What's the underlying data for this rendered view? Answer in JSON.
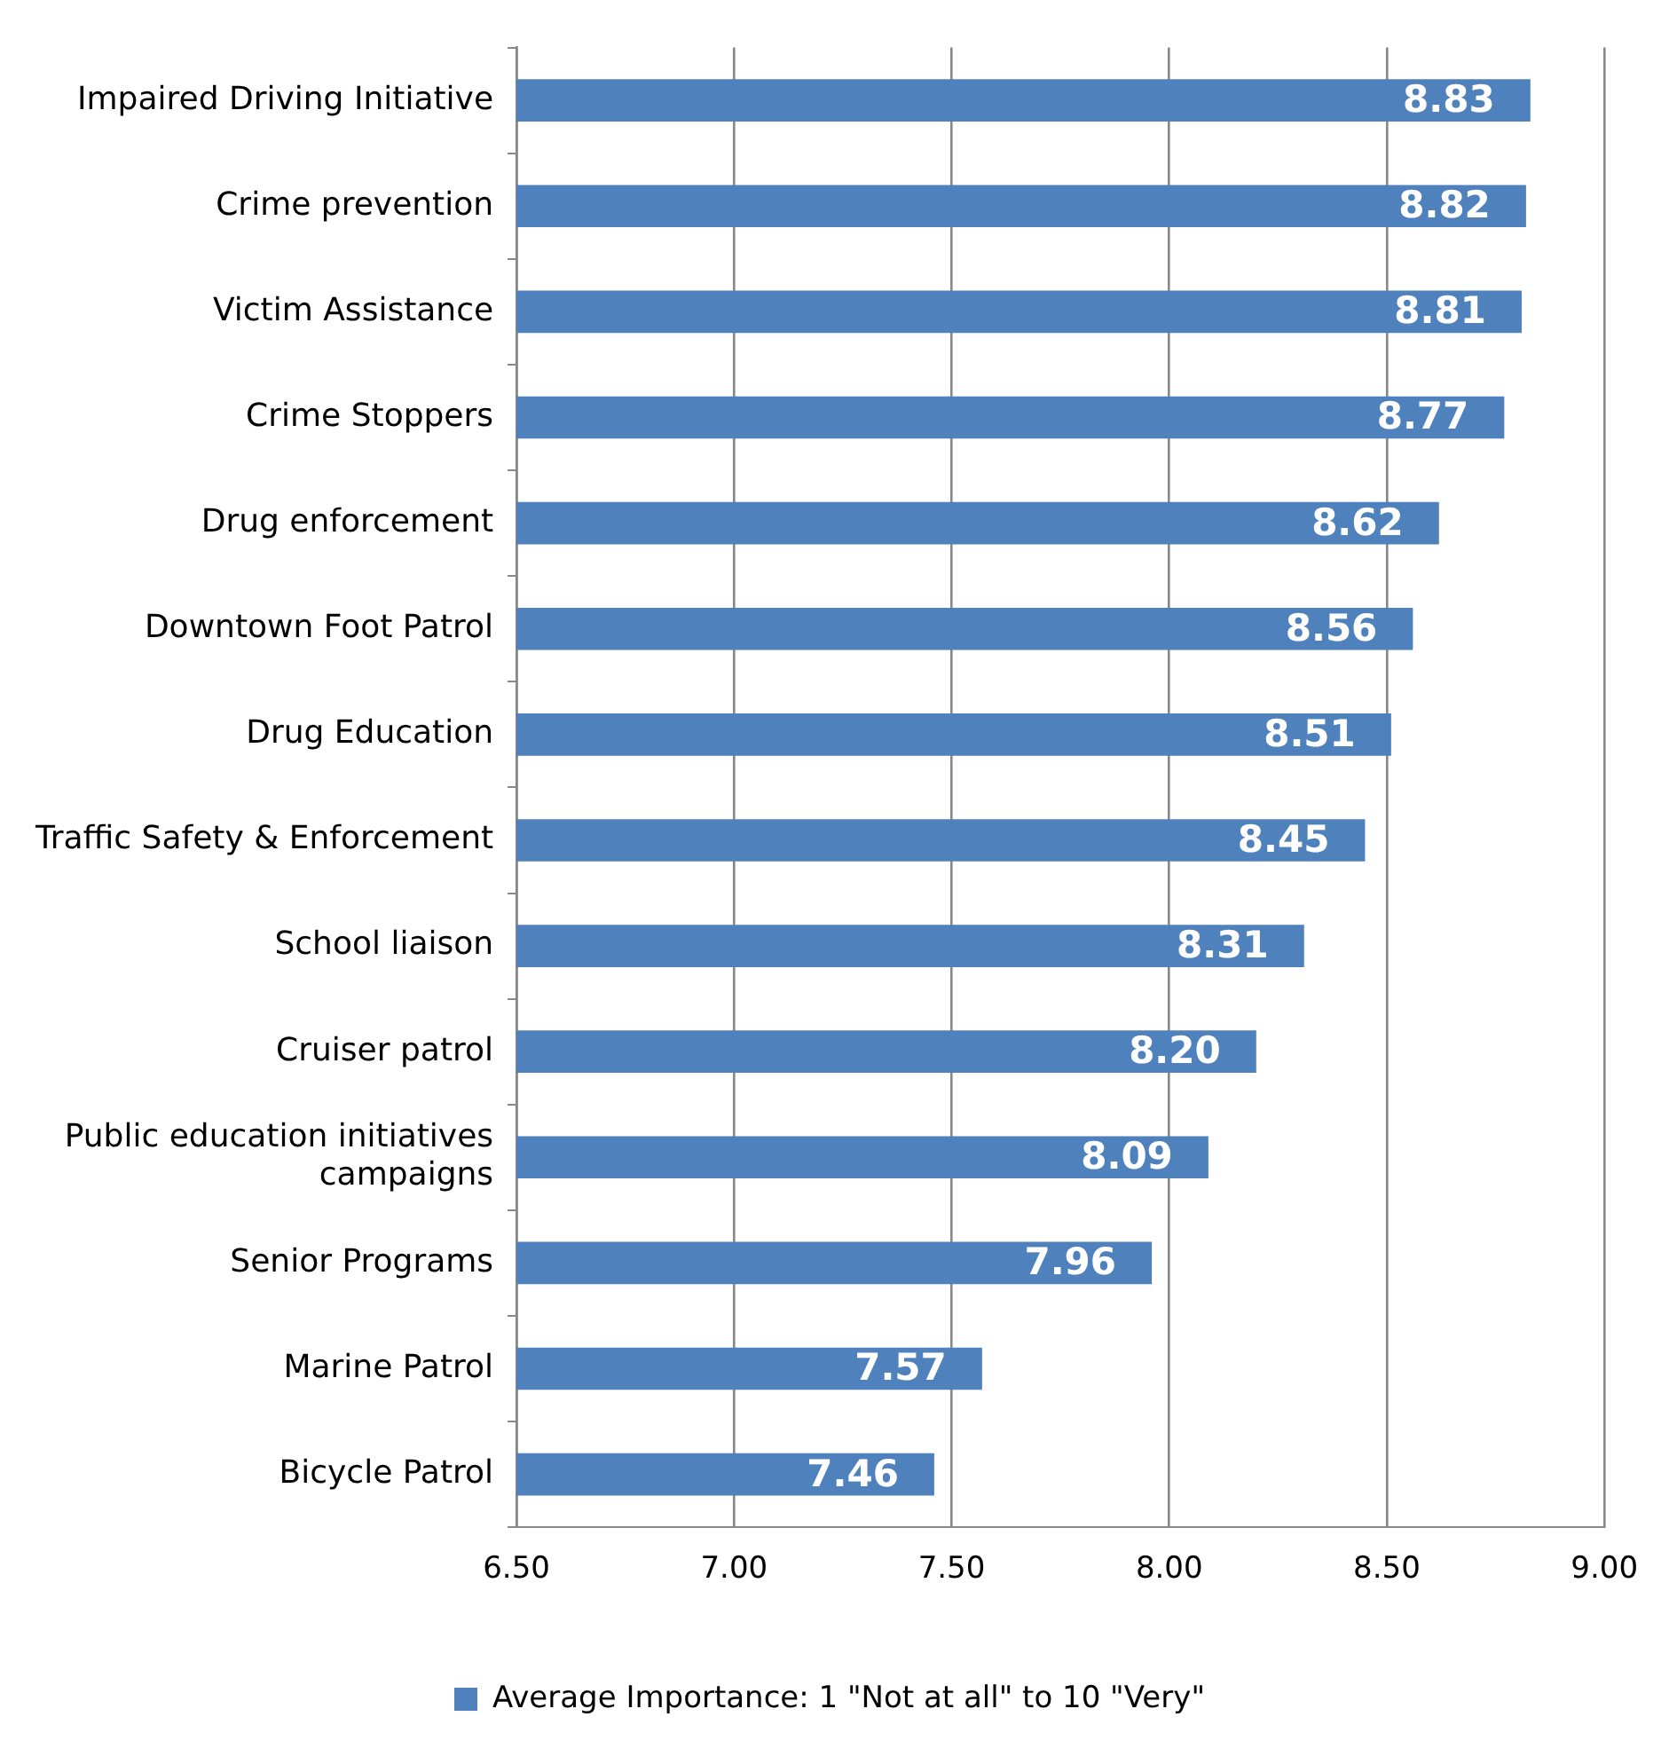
{
  "chart_data": {
    "type": "bar",
    "orientation": "horizontal",
    "categories": [
      "Impaired Driving Initiative",
      "Crime prevention",
      "Victim Assistance",
      "Crime Stoppers",
      "Drug enforcement",
      "Downtown Foot Patrol",
      "Drug Education",
      "Traffic Safety & Enforcement",
      "School liaison",
      "Cruiser patrol",
      "Public education initiatives campaigns",
      "Senior Programs",
      "Marine Patrol",
      "Bicycle Patrol"
    ],
    "series": [
      {
        "name": "Average Importance: 1 \"Not at all\" to 10 \"Very\"",
        "color": "#4f81bd",
        "values": [
          8.83,
          8.82,
          8.81,
          8.77,
          8.62,
          8.56,
          8.51,
          8.45,
          8.31,
          8.2,
          8.09,
          7.96,
          7.57,
          7.46
        ]
      }
    ],
    "xlim": [
      6.5,
      9
    ],
    "xticks": [
      {
        "value": 6.5,
        "label": "6.50"
      },
      {
        "value": 7,
        "label": "7.00"
      },
      {
        "value": 7.5,
        "label": "7.50"
      },
      {
        "value": 8,
        "label": "8.00"
      },
      {
        "value": 8.5,
        "label": "8.50"
      },
      {
        "value": 9,
        "label": "9.00"
      }
    ],
    "value_labels": [
      "8.83",
      "8.82",
      "8.81",
      "8.77",
      "8.62",
      "8.56",
      "8.51",
      "8.45",
      "8.31",
      "8.20",
      "8.09",
      "7.96",
      "7.57",
      "7.46"
    ],
    "grid": "x",
    "legend": "bottom"
  }
}
